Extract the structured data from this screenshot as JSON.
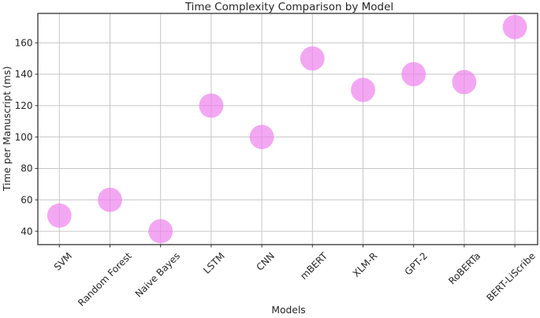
{
  "figure": {
    "background": "#ffffff"
  },
  "chart_data": {
    "type": "scatter",
    "title": "Time Complexity Comparison by Model",
    "xlabel": "Models",
    "ylabel": "Time per Manuscript (ms)",
    "categories": [
      "SVM",
      "Random Forest",
      "Naive Bayes",
      "LSTM",
      "CNN",
      "mBERT",
      "XLM-R",
      "GPT-2",
      "RoBERTa",
      "BERT-LiScribe"
    ],
    "values": [
      50,
      60,
      40,
      120,
      100,
      150,
      130,
      140,
      135,
      170
    ],
    "yticks": [
      40,
      60,
      80,
      100,
      120,
      140,
      160
    ],
    "ylim": [
      31.5,
      178.7
    ],
    "grid": true,
    "legend_position": "none",
    "x_tick_rotation_deg": 45,
    "marker": {
      "shape": "circle",
      "color": "#EE82EE",
      "opacity": 0.7,
      "radius_px": 15.4
    },
    "grid_color": "#c6c6c6",
    "spine_color": "#333333",
    "text_color": "#262626"
  }
}
